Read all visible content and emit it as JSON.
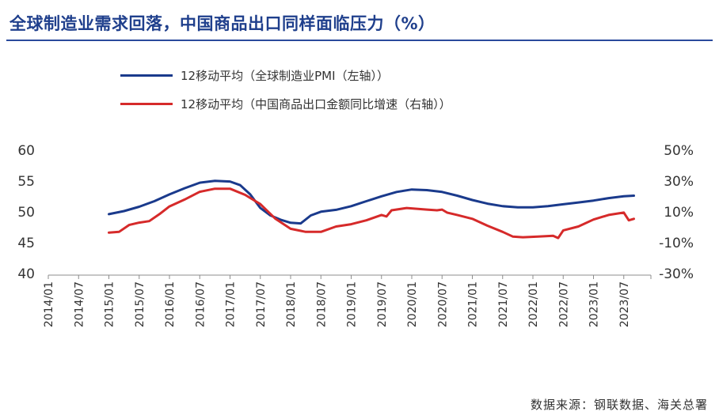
{
  "title": "全球制造业需求回落，中国商品出口同样面临压力（%）",
  "source": "数据来源：钢联数据、海关总署",
  "colors": {
    "title": "#1f3f8c",
    "pmi": "#1a3a8c",
    "export": "#d62a2a",
    "axis": "#8c8c8c",
    "text": "#333333"
  },
  "chart_data": {
    "type": "line",
    "title": "全球制造业需求回落，中国商品出口同样面临压力（%）",
    "legend_position": "top",
    "grid": false,
    "x_ticks": [
      "2014/01",
      "2014/07",
      "2015/01",
      "2015/07",
      "2016/01",
      "2016/07",
      "2017/01",
      "2017/07",
      "2018/01",
      "2018/07",
      "2019/01",
      "2019/07",
      "2020/01",
      "2020/07",
      "2021/01",
      "2021/07",
      "2022/01",
      "2022/07",
      "2023/01",
      "2023/07"
    ],
    "y_left": {
      "ticks": [
        "60",
        "55",
        "50",
        "45",
        "40"
      ],
      "range": [
        40,
        60
      ]
    },
    "y_right": {
      "ticks": [
        "50%",
        "30%",
        "10%",
        "-10%",
        "-30%"
      ],
      "range": [
        -30,
        50
      ]
    },
    "series": [
      {
        "name": "12移动平均（全球制造业PMI（左轴））",
        "axis": "left",
        "points": [
          [
            "2015/01",
            49.5
          ],
          [
            "2015/04",
            50.0
          ],
          [
            "2015/07",
            50.7
          ],
          [
            "2015/10",
            51.6
          ],
          [
            "2016/01",
            52.7
          ],
          [
            "2016/04",
            53.7
          ],
          [
            "2016/07",
            54.6
          ],
          [
            "2016/10",
            54.9
          ],
          [
            "2017/01",
            54.8
          ],
          [
            "2017/03",
            54.2
          ],
          [
            "2017/05",
            52.7
          ],
          [
            "2017/07",
            50.5
          ],
          [
            "2017/09",
            49.3
          ],
          [
            "2017/11",
            48.6
          ],
          [
            "2018/01",
            48.1
          ],
          [
            "2018/03",
            48.0
          ],
          [
            "2018/05",
            49.3
          ],
          [
            "2018/07",
            49.9
          ],
          [
            "2018/10",
            50.2
          ],
          [
            "2019/01",
            50.8
          ],
          [
            "2019/04",
            51.6
          ],
          [
            "2019/07",
            52.4
          ],
          [
            "2019/10",
            53.1
          ],
          [
            "2020/01",
            53.5
          ],
          [
            "2020/04",
            53.4
          ],
          [
            "2020/07",
            53.1
          ],
          [
            "2020/10",
            52.5
          ],
          [
            "2021/01",
            51.8
          ],
          [
            "2021/04",
            51.2
          ],
          [
            "2021/07",
            50.8
          ],
          [
            "2021/10",
            50.6
          ],
          [
            "2022/01",
            50.6
          ],
          [
            "2022/04",
            50.8
          ],
          [
            "2022/07",
            51.1
          ],
          [
            "2022/10",
            51.4
          ],
          [
            "2023/01",
            51.7
          ],
          [
            "2023/04",
            52.1
          ],
          [
            "2023/07",
            52.4
          ],
          [
            "2023/09",
            52.5
          ]
        ]
      },
      {
        "name": "12移动平均（中国商品出口金额同比增速（右轴））",
        "axis": "right",
        "points": [
          [
            "2015/01",
            -4.0
          ],
          [
            "2015/03",
            -3.5
          ],
          [
            "2015/05",
            1.0
          ],
          [
            "2015/07",
            2.5
          ],
          [
            "2015/09",
            3.5
          ],
          [
            "2015/11",
            8.0
          ],
          [
            "2016/01",
            13.0
          ],
          [
            "2016/04",
            17.5
          ],
          [
            "2016/07",
            22.5
          ],
          [
            "2016/10",
            24.5
          ],
          [
            "2017/01",
            24.5
          ],
          [
            "2017/04",
            20.5
          ],
          [
            "2017/07",
            14.5
          ],
          [
            "2017/10",
            5.0
          ],
          [
            "2018/01",
            -1.5
          ],
          [
            "2018/04",
            -3.5
          ],
          [
            "2018/07",
            -3.5
          ],
          [
            "2018/10",
            0.0
          ],
          [
            "2019/01",
            1.5
          ],
          [
            "2019/04",
            4.0
          ],
          [
            "2019/07",
            7.5
          ],
          [
            "2019/08",
            6.5
          ],
          [
            "2019/09",
            10.5
          ],
          [
            "2019/12",
            12.0
          ],
          [
            "2020/04",
            11.0
          ],
          [
            "2020/06",
            10.5
          ],
          [
            "2020/07",
            11.0
          ],
          [
            "2020/08",
            9.0
          ],
          [
            "2020/10",
            7.5
          ],
          [
            "2021/01",
            5.0
          ],
          [
            "2021/04",
            0.5
          ],
          [
            "2021/07",
            -3.5
          ],
          [
            "2021/09",
            -6.5
          ],
          [
            "2021/11",
            -7.0
          ],
          [
            "2022/02",
            -6.5
          ],
          [
            "2022/05",
            -6.0
          ],
          [
            "2022/06",
            -7.5
          ],
          [
            "2022/07",
            -2.5
          ],
          [
            "2022/10",
            0.0
          ],
          [
            "2023/01",
            4.5
          ],
          [
            "2023/04",
            7.5
          ],
          [
            "2023/07",
            9.0
          ],
          [
            "2023/08",
            4.0
          ],
          [
            "2023/09",
            5.0
          ]
        ]
      }
    ]
  }
}
